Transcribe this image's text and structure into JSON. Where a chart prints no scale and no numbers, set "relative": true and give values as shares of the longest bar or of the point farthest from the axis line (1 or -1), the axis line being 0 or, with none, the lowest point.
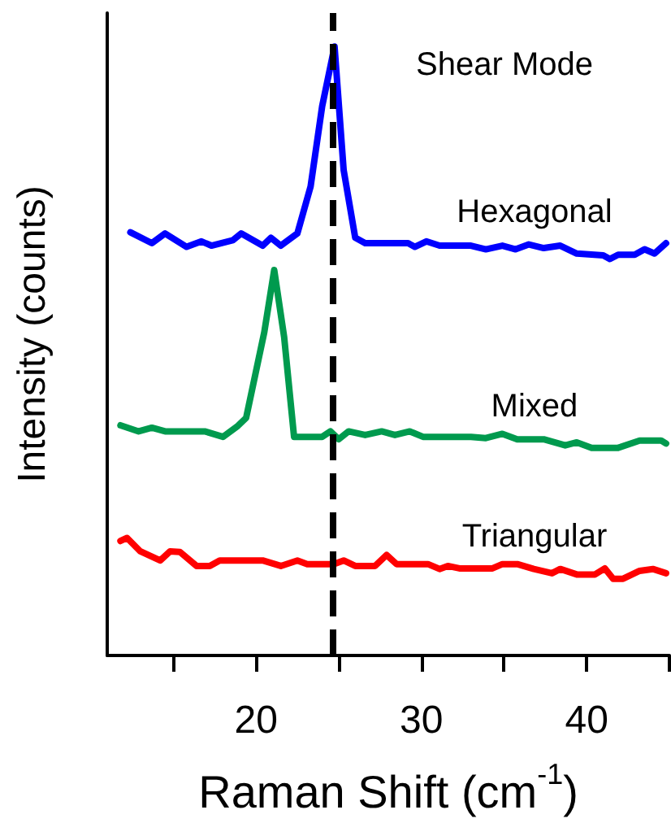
{
  "chart_data": {
    "type": "line",
    "relative": true,
    "xlabel": "Raman Shift (cm$^{-1}$)",
    "ylabel": "Intensity (counts)",
    "annotations": [
      "Shear Mode"
    ],
    "xlim": [
      11,
      45
    ],
    "xticks": [
      {
        "value": 15,
        "label": null
      },
      20,
      {
        "value": 25,
        "label": null
      },
      30,
      {
        "value": 35,
        "label": null
      },
      40,
      {
        "value": 45,
        "label": null
      }
    ],
    "grid": false,
    "legend": false,
    "marker": "none",
    "line_style": "solid",
    "ref_lines": [
      {
        "axis": "x",
        "value": 24.6,
        "color": "#000000",
        "line_style": "dashed"
      }
    ],
    "series": [
      {
        "name": "Hexagonal",
        "color": "#0000ff",
        "x": [
          12.4,
          13.7,
          14.5,
          15.8,
          16.7,
          17.3,
          18.6,
          19.1,
          20.4,
          20.9,
          21.5,
          22.5,
          23.3,
          24.0,
          24.75,
          25.3,
          26.0,
          26.6,
          29.2,
          29.6,
          30.3,
          31.1,
          33.0,
          33.9,
          34.9,
          35.7,
          36.5,
          37.4,
          38.4,
          39.4,
          41.0,
          41.4,
          41.9,
          42.9,
          43.5,
          44.1,
          44.8
        ],
        "values": [
          0.695,
          0.677,
          0.693,
          0.671,
          0.68,
          0.673,
          0.682,
          0.693,
          0.673,
          0.686,
          0.673,
          0.693,
          0.77,
          0.902,
          1.0,
          0.797,
          0.686,
          0.677,
          0.677,
          0.671,
          0.68,
          0.673,
          0.673,
          0.667,
          0.673,
          0.667,
          0.675,
          0.669,
          0.673,
          0.66,
          0.657,
          0.651,
          0.658,
          0.658,
          0.667,
          0.66,
          0.677
        ]
      },
      {
        "name": "Mixed",
        "color": "#009a4e",
        "x": [
          11.8,
          12.9,
          13.7,
          14.5,
          16.9,
          18.0,
          18.9,
          19.4,
          20.5,
          21.1,
          21.7,
          22.3,
          24.0,
          24.5,
          25.0,
          25.6,
          26.6,
          27.6,
          28.4,
          29.3,
          30.1,
          33.0,
          33.9,
          34.9,
          35.8,
          37.4,
          38.7,
          39.4,
          40.3,
          41.9,
          43.2,
          44.5,
          44.8
        ],
        "values": [
          0.378,
          0.368,
          0.374,
          0.368,
          0.368,
          0.359,
          0.377,
          0.39,
          0.531,
          0.633,
          0.523,
          0.359,
          0.359,
          0.368,
          0.355,
          0.368,
          0.362,
          0.368,
          0.362,
          0.368,
          0.359,
          0.359,
          0.357,
          0.364,
          0.355,
          0.355,
          0.345,
          0.35,
          0.341,
          0.341,
          0.353,
          0.353,
          0.348
        ]
      },
      {
        "name": "Triangular",
        "color": "#ff0000",
        "x": [
          11.8,
          12.2,
          13.0,
          14.2,
          14.8,
          15.4,
          16.4,
          17.2,
          17.8,
          20.4,
          21.5,
          22.5,
          23.1,
          24.7,
          25.3,
          26.0,
          27.2,
          27.9,
          28.5,
          30.4,
          31.1,
          31.6,
          32.3,
          34.3,
          34.9,
          35.8,
          36.8,
          37.9,
          38.4,
          39.4,
          40.5,
          41.1,
          41.6,
          42.2,
          43.2,
          44.0,
          44.8
        ],
        "values": [
          0.188,
          0.193,
          0.171,
          0.156,
          0.171,
          0.17,
          0.147,
          0.147,
          0.156,
          0.156,
          0.147,
          0.156,
          0.15,
          0.15,
          0.156,
          0.147,
          0.147,
          0.165,
          0.15,
          0.15,
          0.142,
          0.147,
          0.143,
          0.143,
          0.15,
          0.15,
          0.142,
          0.135,
          0.142,
          0.133,
          0.133,
          0.143,
          0.126,
          0.126,
          0.139,
          0.142,
          0.135
        ]
      }
    ]
  }
}
